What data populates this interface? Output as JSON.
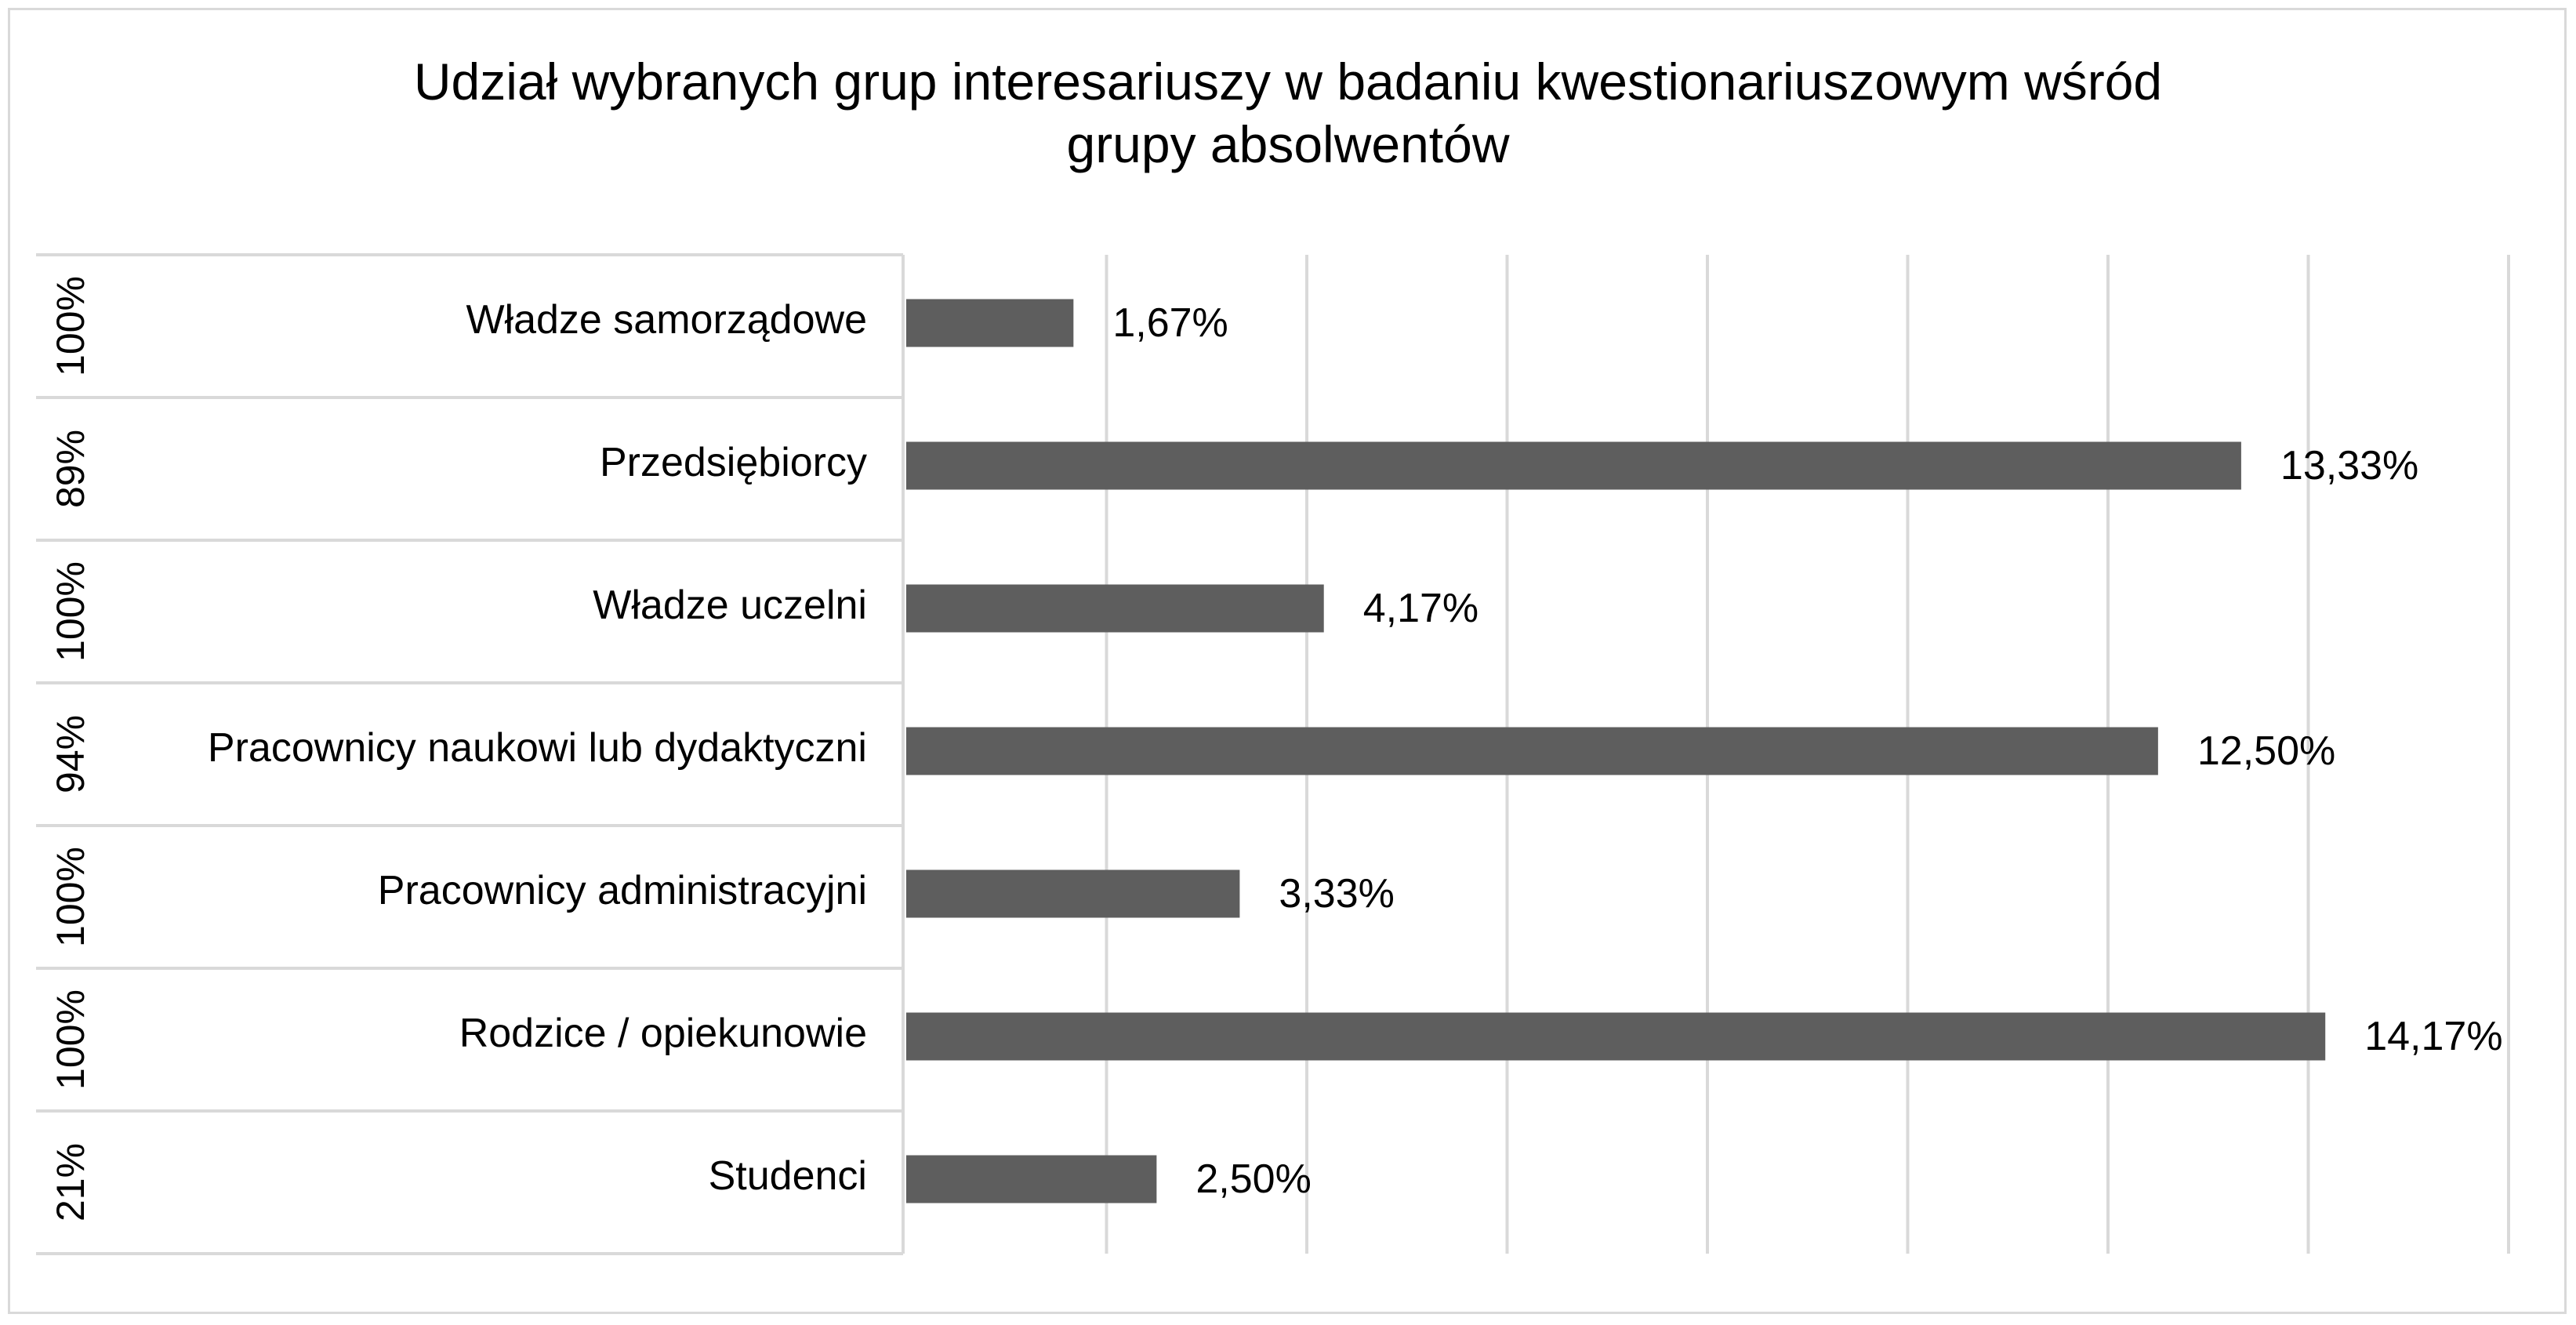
{
  "chart_data": {
    "type": "bar",
    "orientation": "horizontal",
    "title": "Udział wybranych grup interesariuszy w badaniu kwestionariuszowym wśród\ngrupy absolwentów",
    "categories": [
      "Władze samorządowe",
      "Przedsiębiorcy",
      "Władze uczelni",
      "Pracownicy naukowi lub dydaktyczni",
      "Pracownicy administracyjni",
      "Rodzice / opiekunowie",
      "Studenci"
    ],
    "secondary_labels": [
      "100%",
      "89%",
      "100%",
      "94%",
      "100%",
      "100%",
      "21%"
    ],
    "values": [
      1.67,
      13.33,
      4.17,
      12.5,
      3.33,
      14.17,
      2.5
    ],
    "data_labels": [
      "1,67%",
      "13,33%",
      "4,17%",
      "12,50%",
      "3,33%",
      "14,17%",
      "2,50%"
    ],
    "xlim": [
      0,
      16
    ],
    "grid_step": 2,
    "grid": true,
    "legend": "none",
    "bar_color": "#5e5e5e",
    "grid_color": "#d9d9d9"
  }
}
